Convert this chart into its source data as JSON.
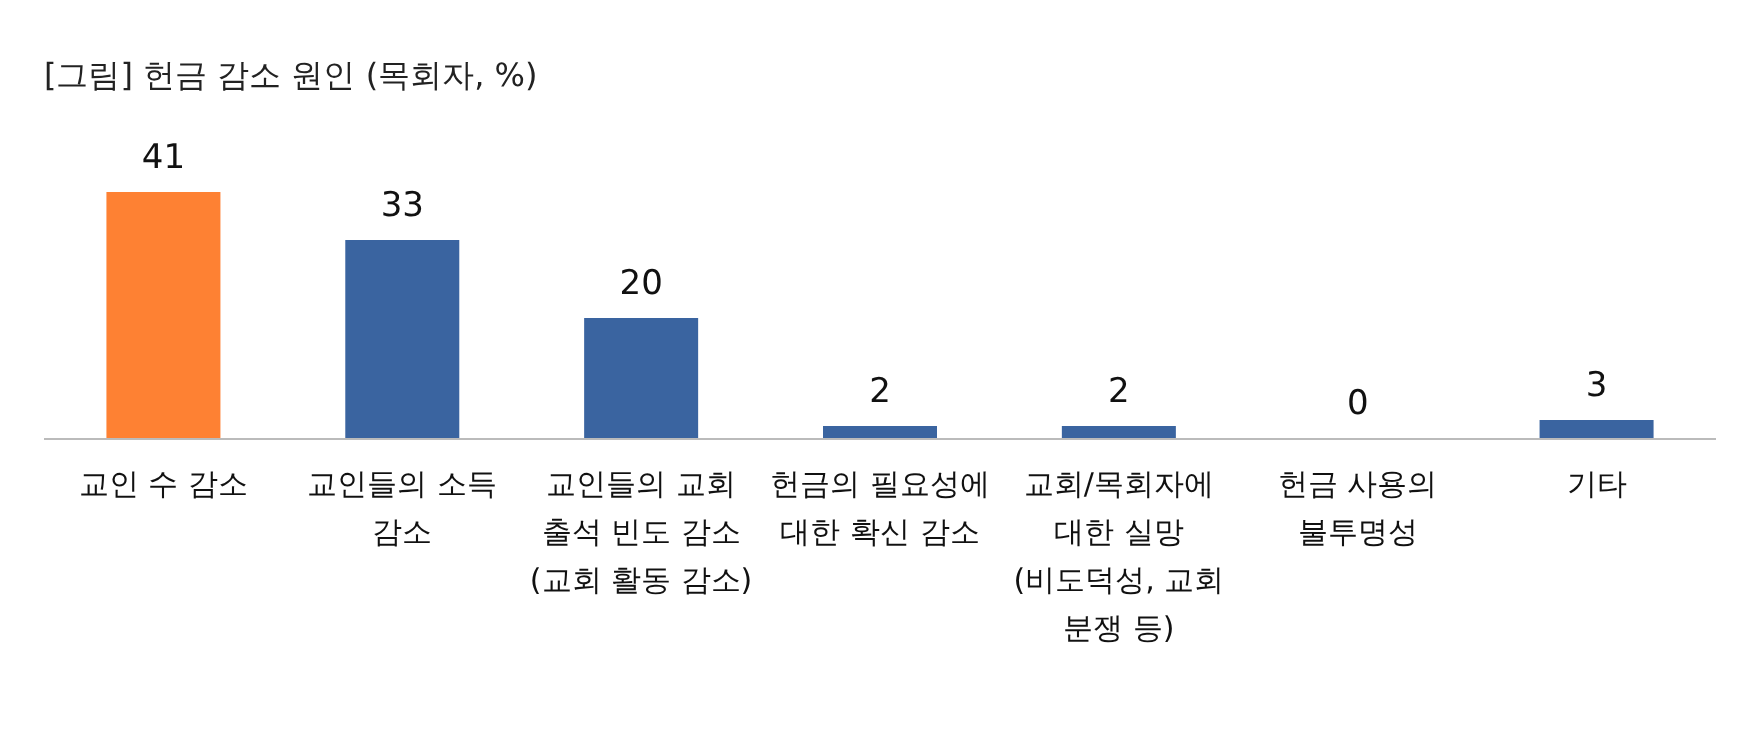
{
  "chart_data": {
    "type": "bar",
    "title": "[그림] 헌금 감소 원인 (목회자, %)",
    "categories": [
      "교인 수 감소",
      "교인들의 소득 감소",
      "교인들의 교회 출석 빈도 감소(교회 활동 감소)",
      "헌금의 필요성에 대한 확신 감소",
      "교회/목회자에 대한 실망 (비도덕성, 교회 분쟁 등)",
      "헌금 사용의 불투명성",
      "기타"
    ],
    "values": [
      41,
      33,
      20,
      2,
      2,
      0,
      3
    ],
    "colors": [
      "#fe8133",
      "#3a64a0",
      "#3a64a0",
      "#3a64a0",
      "#3a64a0",
      "#3a64a0",
      "#3a64a0"
    ],
    "data_labels": true
  }
}
